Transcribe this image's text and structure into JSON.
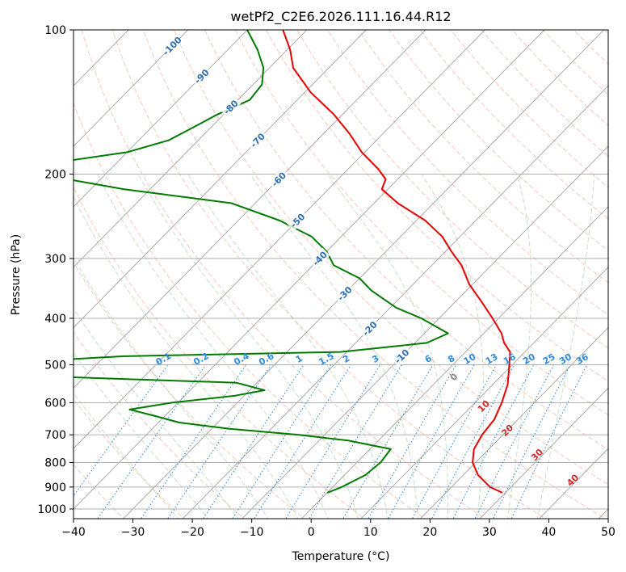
{
  "chart_data": {
    "type": "line",
    "title": "wetPf2_C2E6.2026.111.16.44.R12",
    "xlabel": "Temperature (°C)",
    "ylabel": "Pressure (hPa)",
    "xlim": [
      -40,
      50
    ],
    "ylim": [
      1050,
      100
    ],
    "y_scale": "log",
    "x_ticks": [
      "−40",
      "−30",
      "−20",
      "−10",
      "0",
      "10",
      "20",
      "30",
      "40",
      "50"
    ],
    "y_ticks": [
      "100",
      "200",
      "300",
      "400",
      "500",
      "600",
      "700",
      "800",
      "900",
      "1000"
    ],
    "grid": true,
    "skew": "skew-T log-p",
    "series": [
      {
        "color": "#e60000",
        "kind": "temperature",
        "pressure": [
          925,
          900,
          850,
          800,
          750,
          700,
          650,
          600,
          550,
          500,
          470,
          450,
          430,
          400,
          370,
          340,
          310,
          290,
          270,
          250,
          230,
          215,
          205,
          195,
          180,
          165,
          150,
          135,
          120,
          110,
          100
        ],
        "temperature": [
          29.5,
          26.5,
          22.5,
          19.5,
          17.5,
          16.5,
          16.0,
          14.5,
          12.5,
          9.5,
          7.5,
          5.0,
          3.0,
          -1.0,
          -5.5,
          -10.5,
          -15.0,
          -19.0,
          -23.0,
          -28.5,
          -36.0,
          -41.0,
          -42.0,
          -45.0,
          -50.5,
          -55.5,
          -61.5,
          -69.0,
          -76.0,
          -79.5,
          -84.0
        ]
      },
      {
        "color": "#007a00",
        "kind": "dewpoint",
        "pressure": [
          925,
          900,
          850,
          800,
          750,
          720,
          700,
          680,
          660,
          640,
          620,
          600,
          580,
          565,
          545,
          530,
          510,
          500,
          490,
          480,
          470,
          450,
          430,
          400,
          380,
          350,
          330,
          310,
          290,
          270,
          250,
          230,
          215,
          205,
          195,
          188,
          180,
          170,
          160,
          150,
          140,
          130,
          120,
          110,
          100
        ],
        "dewpoint": [
          0.0,
          1.5,
          3.5,
          4.0,
          3.5,
          -5.0,
          -14.5,
          -27.0,
          -36.5,
          -41.5,
          -47.0,
          -41.0,
          -31.5,
          -27.5,
          -33.5,
          -64.0,
          -68.5,
          -69.0,
          -69.5,
          -57.0,
          -21.0,
          -8.0,
          -6.0,
          -13.0,
          -19.0,
          -26.0,
          -30.0,
          -36.5,
          -40.0,
          -45.0,
          -53.0,
          -64.0,
          -84.5,
          -95.5,
          -100.0,
          -99.0,
          -90.0,
          -85.0,
          -83.0,
          -81.0,
          -78.0,
          -78.5,
          -81.0,
          -85.0,
          -90.0
        ]
      }
    ],
    "dry_adiabat_labels": [
      "-100",
      "-90",
      "-80",
      "-70",
      "-60",
      "-50",
      "-40",
      "-30",
      "-20",
      "-10"
    ],
    "mixing_ratio_labels": [
      "0.1",
      "0.2",
      "0.4",
      "0.6",
      "1",
      "1.5",
      "2",
      "3",
      "4",
      "6",
      "8",
      "10",
      "13",
      "16",
      "20",
      "25",
      "30",
      "36"
    ],
    "moist_adiabat_labels": [
      "0",
      "10",
      "20",
      "30",
      "40"
    ]
  }
}
